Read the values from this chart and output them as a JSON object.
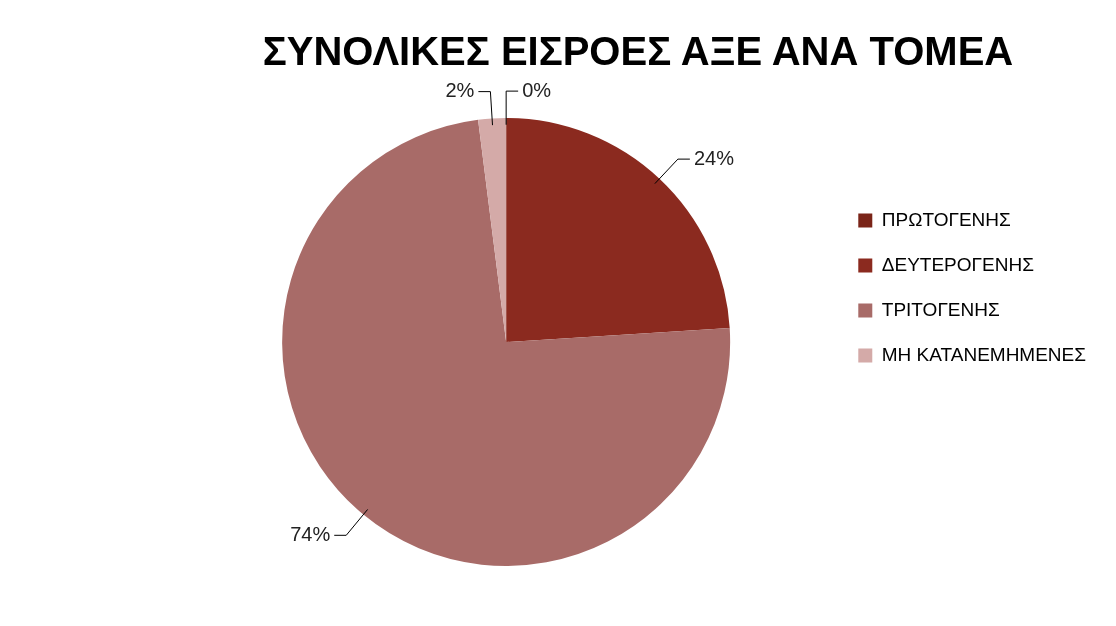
{
  "chart_data": {
    "type": "pie",
    "title": "ΣΥΝΟΛΙΚΕΣ ΕΙΣΡΟΕΣ ΑΞΕ ΑΝΑ ΤΟΜΕΑ",
    "categories": [
      "ΠΡΩΤΟΓΕΝΗΣ",
      "ΔΕΥΤΕΡΟΓΕΝΗΣ",
      "ΤΡΙΤΟΓΕΝΗΣ",
      "ΜΗ ΚΑΤΑΝΕΜΗΜΕΝΕΣ"
    ],
    "values": [
      0,
      24,
      74,
      2
    ],
    "colors": [
      "#7a2418",
      "#8b2a1f",
      "#a86b68",
      "#d4aaa8"
    ],
    "value_labels": [
      "0%",
      "24%",
      "74%",
      "2%"
    ],
    "legend": "right"
  }
}
